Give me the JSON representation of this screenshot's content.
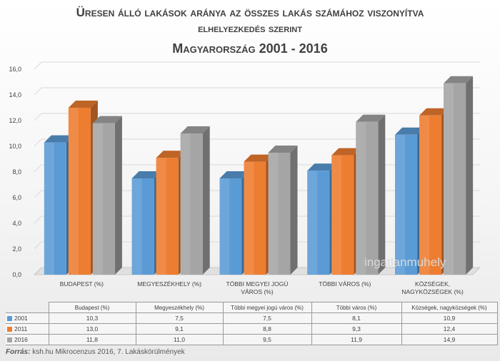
{
  "title": {
    "line1": "Üresen álló lakások aránya az összes lakás számához viszonyítva",
    "line2": "elhelyezkedés szerint",
    "line3": "Magyarország 2001 - 2016"
  },
  "chart_data": {
    "type": "bar",
    "categories": [
      "BUDAPEST (%)",
      "MEGYESZÉKHELY (%)",
      "TÖBBI MEGYEI JOGÚ VÁROS (%)",
      "TÖBBI VÁROS (%)",
      "KÖZSÉGEK, NAGYKÖZSÉGEK (%)"
    ],
    "category_lines": [
      [
        "BUDAPEST (%)"
      ],
      [
        "MEGYESZÉKHELY (%)"
      ],
      [
        "TÖBBI MEGYEI JOGÚ",
        "VÁROS (%)"
      ],
      [
        "TÖBBI VÁROS (%)"
      ],
      [
        "KÖZSÉGEK,",
        "NAGYKÖZSÉGEK (%)"
      ]
    ],
    "table_headers": [
      "Budapest (%)",
      "Megyeszékhely (%)",
      "Többi megyei jogú város (%)",
      "Többi város (%)",
      "Községek, nagyközségek (%)"
    ],
    "series": [
      {
        "name": "2001",
        "values": [
          10.3,
          7.5,
          7.5,
          8.1,
          10.9
        ],
        "labels": [
          "10,3",
          "7,5",
          "7,5",
          "8,1",
          "10,9"
        ],
        "color": "#5b9bd5"
      },
      {
        "name": "2011",
        "values": [
          13.0,
          9.1,
          8.8,
          9.3,
          12.4
        ],
        "labels": [
          "13,0",
          "9,1",
          "8,8",
          "9,3",
          "12,4"
        ],
        "color": "#ed7d31"
      },
      {
        "name": "2016",
        "values": [
          11.8,
          11.0,
          9.5,
          11.9,
          14.9
        ],
        "labels": [
          "11,8",
          "11,0",
          "9,5",
          "11,9",
          "14,9"
        ],
        "color": "#a5a5a5"
      }
    ],
    "ylim": [
      0,
      16
    ],
    "yticks": [
      "0,0",
      "2,0",
      "4,0",
      "6,0",
      "8,0",
      "10,0",
      "12,0",
      "14,0",
      "16,0"
    ],
    "grid": true,
    "legend": "data table below chart"
  },
  "source": {
    "label": "Forrás:",
    "text": " ksh.hu Mikrocenzus 2016, 7. Lakáskörülmények"
  },
  "watermark": "ingatlanmuhely"
}
